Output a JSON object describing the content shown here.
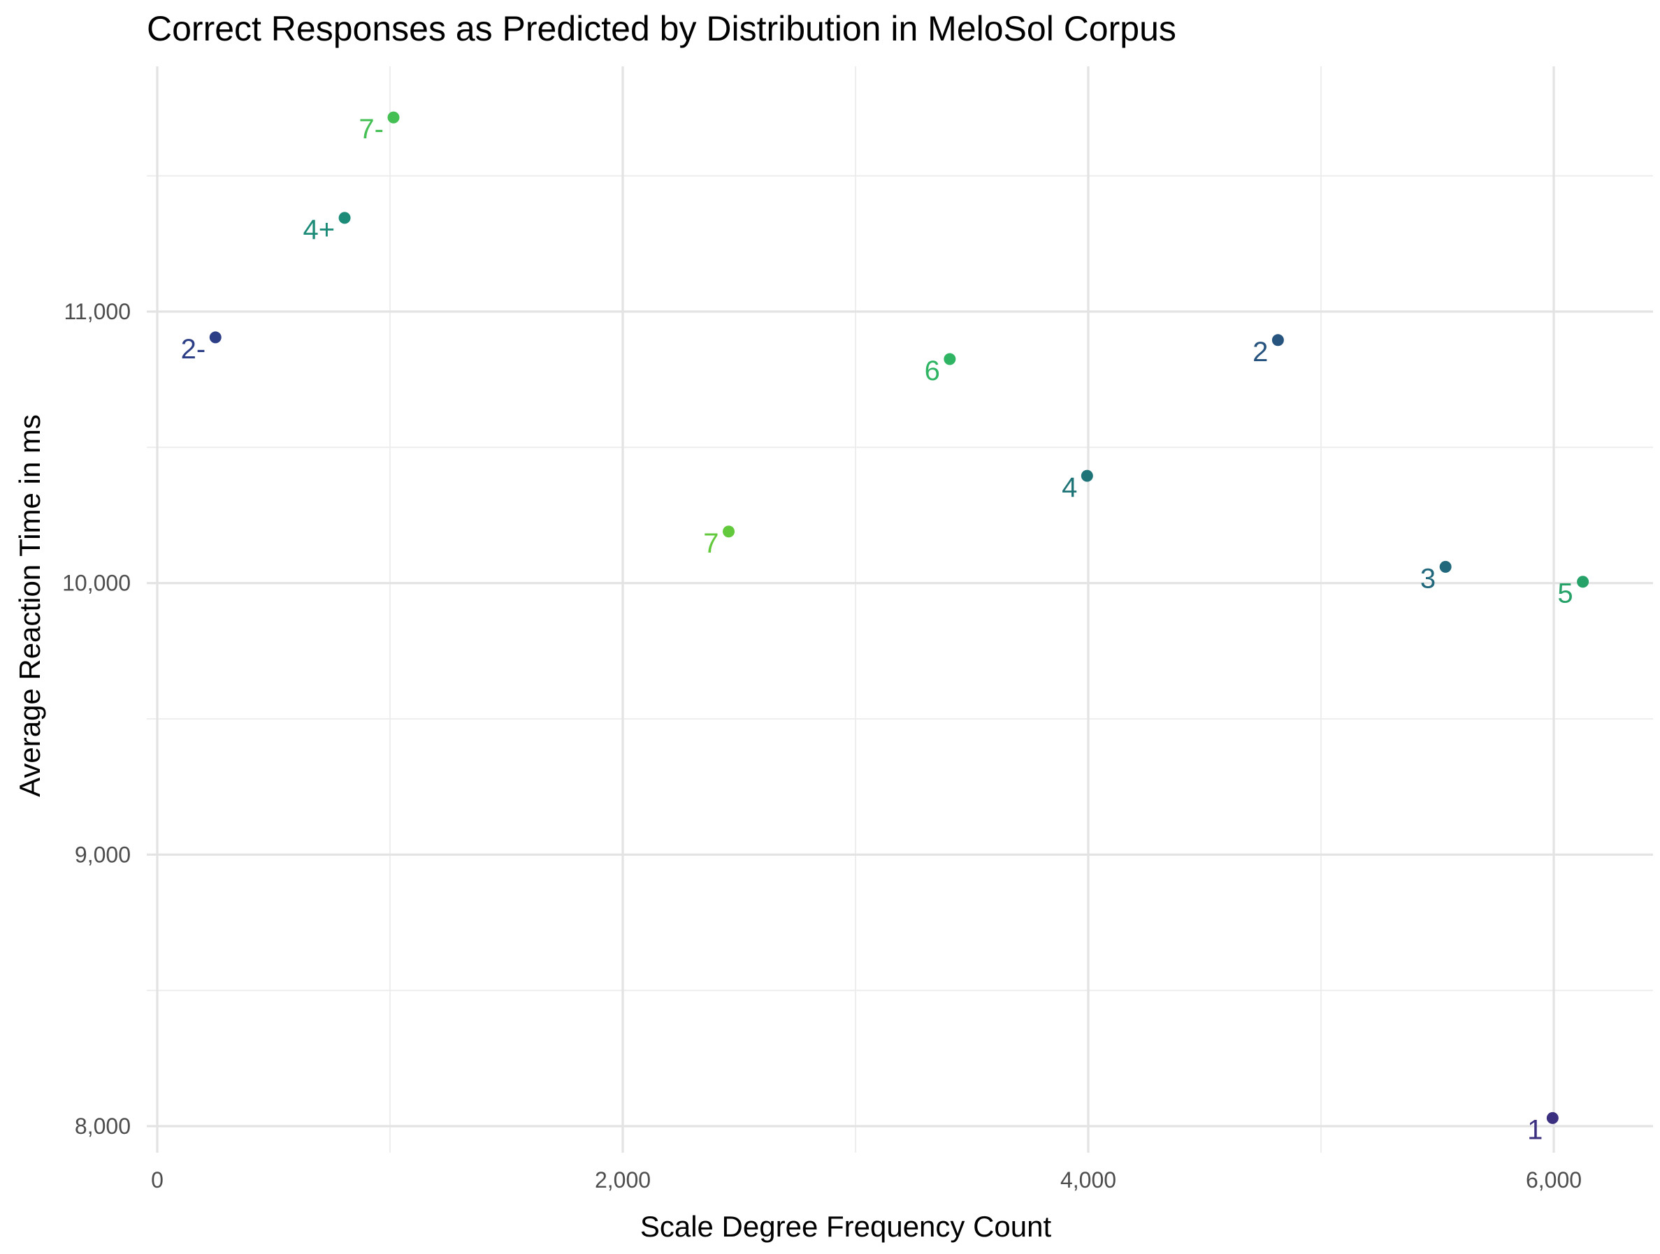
{
  "chart_data": {
    "type": "scatter",
    "title": "Correct Responses as Predicted by Distribution in MeloSol Corpus",
    "xlabel": "Scale Degree Frequency Count",
    "ylabel": "Average Reaction Time in ms",
    "xlim": [
      0,
      6400
    ],
    "ylim": [
      7900,
      11900
    ],
    "x_ticks": [
      0,
      2000,
      4000,
      6000
    ],
    "x_tick_labels": [
      "0",
      "2,000",
      "4,000",
      "6,000"
    ],
    "y_ticks": [
      8000,
      9000,
      10000,
      11000
    ],
    "y_tick_labels": [
      "8,000",
      "9,000",
      "10,000",
      "11,000"
    ],
    "grid": true,
    "points": [
      {
        "label": "1",
        "x": 5995,
        "y": 8030,
        "color": "#3b2f80"
      },
      {
        "label": "2-",
        "x": 250,
        "y": 10905,
        "color": "#2c3e86"
      },
      {
        "label": "2",
        "x": 4815,
        "y": 10895,
        "color": "#27537f"
      },
      {
        "label": "3",
        "x": 5535,
        "y": 10060,
        "color": "#21687d"
      },
      {
        "label": "4",
        "x": 3995,
        "y": 10395,
        "color": "#1f7478"
      },
      {
        "label": "4+",
        "x": 805,
        "y": 11345,
        "color": "#1c8b78"
      },
      {
        "label": "5",
        "x": 6125,
        "y": 10005,
        "color": "#26a269"
      },
      {
        "label": "6",
        "x": 3405,
        "y": 10825,
        "color": "#2fb463"
      },
      {
        "label": "7-",
        "x": 1015,
        "y": 11715,
        "color": "#44bf53"
      },
      {
        "label": "7",
        "x": 2455,
        "y": 10190,
        "color": "#62c93c"
      }
    ]
  }
}
